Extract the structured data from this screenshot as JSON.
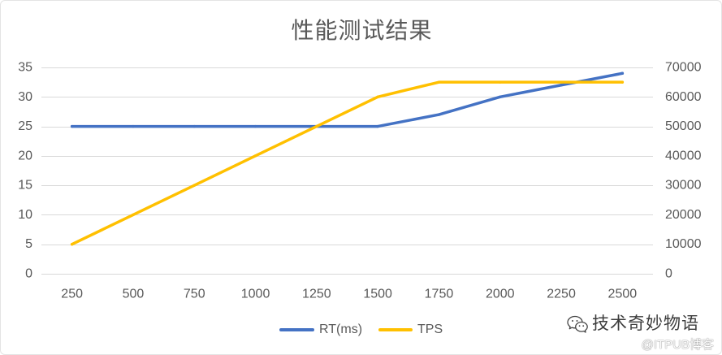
{
  "chart_data": {
    "type": "line",
    "title": "性能测试结果",
    "categories": [
      "250",
      "500",
      "750",
      "1000",
      "1250",
      "1500",
      "1750",
      "2000",
      "2250",
      "2500"
    ],
    "series": [
      {
        "name": "RT(ms)",
        "axis": "left",
        "color": "#4472C4",
        "values": [
          25,
          25,
          25,
          25,
          25,
          25,
          27,
          30,
          32,
          34
        ]
      },
      {
        "name": "TPS",
        "axis": "right",
        "color": "#FFC000",
        "values": [
          10000,
          20000,
          30000,
          40000,
          50000,
          60000,
          65000,
          65000,
          65000,
          65000
        ]
      }
    ],
    "ylim": [
      0,
      35
    ],
    "y_ticks": [
      0,
      5,
      10,
      15,
      20,
      25,
      30,
      35
    ],
    "y2lim": [
      0,
      70000
    ],
    "y2_ticks": [
      0,
      10000,
      20000,
      30000,
      40000,
      50000,
      60000,
      70000
    ],
    "grid": true,
    "legend": "bottom"
  },
  "watermark": {
    "icon": "wechat-icon",
    "account": "技术奇妙物语",
    "site": "@ITPUB博客"
  },
  "colors": {
    "text": "#595959",
    "grid": "#D9D9D9"
  }
}
